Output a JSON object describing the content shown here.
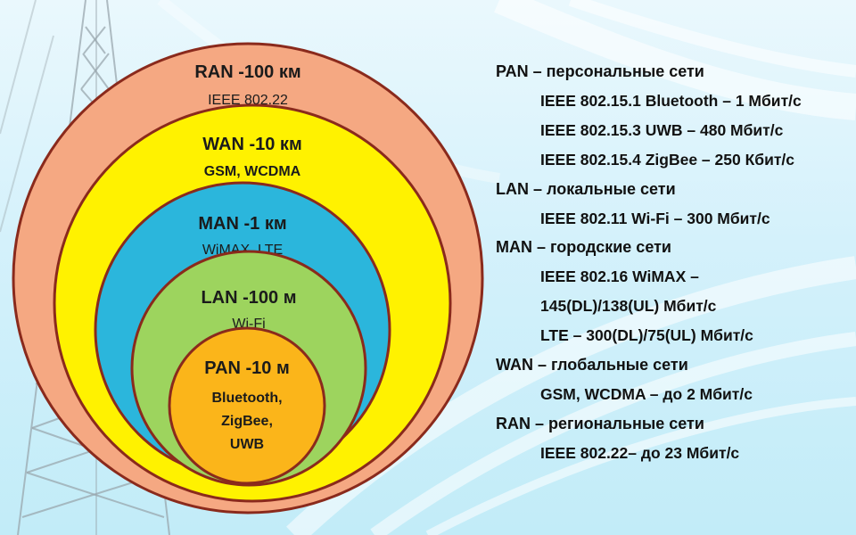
{
  "colors": {
    "ran": "#f5a882",
    "wan": "#fff200",
    "man": "#2bb6dc",
    "lan": "#9dd45e",
    "pan": "#fbb51a",
    "outline": "#8a2a1c"
  },
  "circles": [
    {
      "id": "ran",
      "title": "RAN  -100 км",
      "subtitle": "IEEE 802.22"
    },
    {
      "id": "wan",
      "title": "WAN  -10 км",
      "subtitle": "GSM, WCDMA"
    },
    {
      "id": "man",
      "title": "MAN  -1 км",
      "subtitle": "WiMAX, LTE"
    },
    {
      "id": "lan",
      "title": "LAN  -100 м",
      "subtitle": "Wi-Fi"
    },
    {
      "id": "pan",
      "title": "PAN  -10 м",
      "lines": [
        "Bluetooth,",
        "ZigBee,",
        "UWB"
      ]
    }
  ],
  "legend": [
    {
      "abbr": "PAN",
      "label": " – персональные сети",
      "items": [
        "IEEE 802.15.1 Bluetooth – 1 Мбит/с",
        "IEEE 802.15.3 UWB – 480 Мбит/с",
        "IEEE 802.15.4 ZigBee – 250 Кбит/с"
      ]
    },
    {
      "abbr": "LAN",
      "label": " – локальные сети",
      "items": [
        "IEEE 802.11 Wi-Fi – 300 Мбит/с"
      ]
    },
    {
      "abbr": "MAN",
      "label": " – городские сети",
      "items": [
        "IEEE 802.16 WiMAX –",
        "145(DL)/138(UL) Мбит/с",
        "LTE – 300(DL)/75(UL) Мбит/с"
      ]
    },
    {
      "abbr": "WAN",
      "label": " – глобальные сети",
      "items": [
        "GSM, WCDMA – до 2 Мбит/с"
      ]
    },
    {
      "abbr": "RAN",
      "label": " – региональные сети",
      "items": [
        "IEEE 802.22– до 23 Мбит/с"
      ]
    }
  ]
}
